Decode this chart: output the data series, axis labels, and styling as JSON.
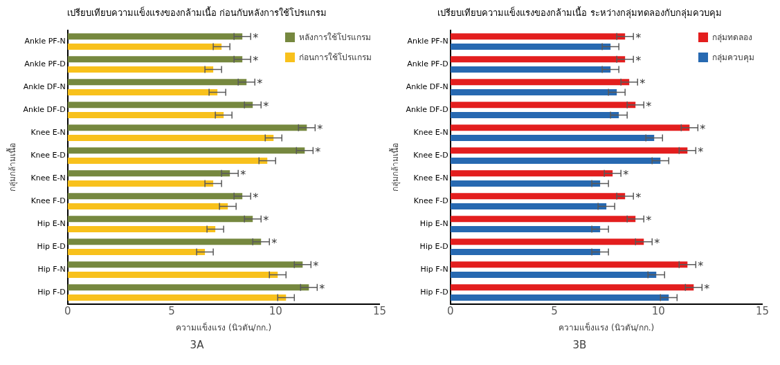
{
  "chart_data": [
    {
      "type": "bar",
      "orientation": "horizontal",
      "title": "เปรียบเทียบความแข็งแรงของกล้ามเนื้อ ก่อนกับหลังการใช้โปรแกรม",
      "xlabel": "ความแข็งแรง (นิวตัน/กก.)",
      "ylabel": "กลุ่มกล้ามเนื้อ",
      "categories": [
        "Ankle PF-N",
        "Ankle PF-D",
        "Ankle DF-N",
        "Ankle DF-D",
        "Knee E-N",
        "Knee E-D",
        "Knee E-N",
        "Knee F-D",
        "Hip E-N",
        "Hip E-D",
        "Hip F-N",
        "Hip F-D"
      ],
      "series": [
        {
          "name": "หลังการใช้โปรแกรม",
          "color": "#76883f",
          "values": [
            8.4,
            8.4,
            8.6,
            8.9,
            11.5,
            11.4,
            7.8,
            8.4,
            8.9,
            9.3,
            11.3,
            11.6
          ],
          "errors": [
            0.4,
            0.4,
            0.4,
            0.4,
            0.4,
            0.4,
            0.4,
            0.4,
            0.4,
            0.4,
            0.4,
            0.4
          ],
          "value_labels": [
            "*",
            "*",
            "*",
            "*",
            "*",
            "*",
            "*",
            "*",
            "*",
            "*",
            "*",
            "*"
          ]
        },
        {
          "name": "ก่อนการใช้โปรแกรม",
          "color": "#f8c11c",
          "values": [
            7.4,
            7.0,
            7.2,
            7.5,
            9.9,
            9.6,
            7.0,
            7.7,
            7.1,
            6.6,
            10.1,
            10.5
          ],
          "errors": [
            0.4,
            0.4,
            0.4,
            0.4,
            0.4,
            0.4,
            0.4,
            0.4,
            0.4,
            0.4,
            0.4,
            0.4
          ]
        }
      ],
      "xlim": [
        0,
        15
      ],
      "xticks": [
        0,
        5,
        10,
        15
      ],
      "grid": false,
      "legend": "top right",
      "annotations": [
        "3A"
      ]
    },
    {
      "type": "bar",
      "orientation": "horizontal",
      "title": "เปรียบเทียบความแข็งแรงของกล้ามเนื้อ ระหว่างกลุ่มทดลองกับกลุ่มควบคุม",
      "xlabel": "ความแข็งแรง (นิวตัน/กก.)",
      "ylabel": "กลุ่มกล้ามเนื้อ",
      "categories": [
        "Ankle PF-N",
        "Ankle PF-D",
        "Ankle DF-N",
        "Ankle DF-D",
        "Knee E-N",
        "Knee E-D",
        "Knee E-N",
        "Knee F-D",
        "Hip E-N",
        "Hip E-D",
        "Hip F-N",
        "Hip F-D"
      ],
      "series": [
        {
          "name": "กลุ่มทดลอง",
          "color": "#e31e1e",
          "values": [
            8.4,
            8.4,
            8.6,
            8.9,
            11.5,
            11.4,
            7.8,
            8.4,
            8.9,
            9.3,
            11.4,
            11.7
          ],
          "errors": [
            0.4,
            0.4,
            0.4,
            0.4,
            0.4,
            0.4,
            0.4,
            0.4,
            0.4,
            0.4,
            0.4,
            0.4
          ],
          "value_labels": [
            "*",
            "*",
            "*",
            "*",
            "*",
            "*",
            "*",
            "*",
            "*",
            "*",
            "*",
            "*"
          ]
        },
        {
          "name": "กลุ่มควบคุม",
          "color": "#2769b1",
          "values": [
            7.7,
            7.7,
            8.0,
            8.1,
            9.8,
            10.1,
            7.2,
            7.5,
            7.2,
            7.2,
            9.9,
            10.5
          ],
          "errors": [
            0.4,
            0.4,
            0.4,
            0.4,
            0.4,
            0.4,
            0.4,
            0.4,
            0.4,
            0.4,
            0.4,
            0.4
          ]
        }
      ],
      "xlim": [
        0,
        15
      ],
      "xticks": [
        0,
        5,
        10,
        15
      ],
      "grid": false,
      "legend": "top right",
      "annotations": [
        "3B"
      ]
    }
  ]
}
